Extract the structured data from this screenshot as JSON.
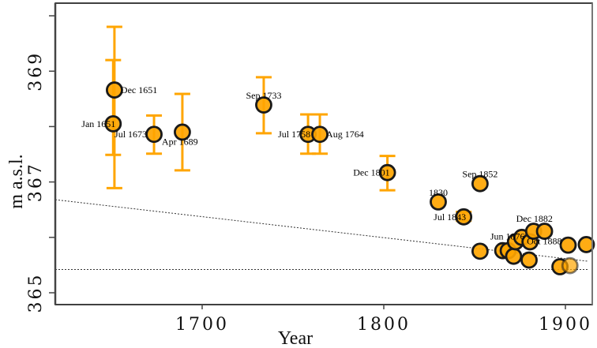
{
  "chart_data": {
    "type": "scatter",
    "title": "",
    "xlabel": "Year",
    "ylabel": "m a.s.l.",
    "xlim": [
      1620,
      1916
    ],
    "ylim": [
      364.8,
      370.2
    ],
    "x_ticks": [
      1700,
      1800,
      1900
    ],
    "x_tick_labels": [
      "1700",
      "1800",
      "1900"
    ],
    "y_ticks": [
      365,
      366,
      367,
      368,
      369,
      370
    ],
    "y_tick_labels": [
      "365",
      "",
      "367",
      "",
      "369",
      ""
    ],
    "grid": false,
    "legend": "none",
    "colors": {
      "marker_fill": "#FFA500",
      "marker_edge": "#1a1a1a",
      "errorbar": "#FFA500",
      "reference_lines": "#333333"
    },
    "reference_lines": [
      {
        "name": "trend-line",
        "style": "dotted",
        "x": [
          1620,
          1916
        ],
        "y": [
          366.68,
          365.57
        ]
      },
      {
        "name": "baseline",
        "style": "dotted",
        "x": [
          1620,
          1916
        ],
        "y": [
          365.42,
          365.42
        ]
      }
    ],
    "points": [
      {
        "label": "Dec 1651",
        "x": 1651.7,
        "y": 368.66,
        "err_low": 366.89,
        "err_high": 369.8,
        "label_pos": "right"
      },
      {
        "label": "Jan 1651",
        "x": 1651.0,
        "y": 368.05,
        "err_low": 367.49,
        "err_high": 369.2,
        "label_pos": "left"
      },
      {
        "label": "Jul 1673",
        "x": 1673.5,
        "y": 367.86,
        "err_low": 367.51,
        "err_high": 368.2,
        "label_pos": "left-below"
      },
      {
        "label": "Apr 1689",
        "x": 1689.1,
        "y": 367.9,
        "err_low": 367.21,
        "err_high": 368.59,
        "label_pos": "right-below"
      },
      {
        "label": "Sep 1733",
        "x": 1733.9,
        "y": 368.39,
        "err_low": 367.88,
        "err_high": 368.89,
        "label_pos": "above"
      },
      {
        "label": "Jul 1758",
        "x": 1758.3,
        "y": 367.86,
        "err_low": 367.51,
        "err_high": 368.22,
        "label_pos": "left"
      },
      {
        "label": "Aug 1764",
        "x": 1764.8,
        "y": 367.86,
        "err_low": 367.51,
        "err_high": 368.22,
        "label_pos": "right"
      },
      {
        "label": "Dec 1801",
        "x": 1802.0,
        "y": 367.17,
        "err_low": 366.85,
        "err_high": 367.47,
        "label_pos": "left"
      },
      {
        "label": "1830",
        "x": 1830.0,
        "y": 366.64,
        "label_pos": "above"
      },
      {
        "label": "Sep 1852",
        "x": 1853.0,
        "y": 366.97,
        "label_pos": "above"
      },
      {
        "label": "Jul 1843",
        "x": 1844.0,
        "y": 366.37,
        "err_low": 366.3,
        "err_high": 366.46,
        "label_pos": "left"
      },
      {
        "label": "",
        "x": 1853.0,
        "y": 365.75
      },
      {
        "label": "Jun 1876",
        "x": 1865.5,
        "y": 365.76,
        "label_pos": "above"
      },
      {
        "label": "",
        "x": 1868.5,
        "y": 365.76
      },
      {
        "label": "",
        "x": 1871.5,
        "y": 365.66
      },
      {
        "label": "",
        "x": 1872.5,
        "y": 365.92
      },
      {
        "label": "",
        "x": 1876.0,
        "y": 366.0
      },
      {
        "label": "Oct 1888",
        "x": 1880.5,
        "y": 365.92,
        "label_pos": "right"
      },
      {
        "label": "",
        "x": 1880.0,
        "y": 365.59
      },
      {
        "label": "Dec 1882",
        "x": 1882.5,
        "y": 366.11,
        "label_pos": "above"
      },
      {
        "label": "",
        "x": 1888.5,
        "y": 366.11
      },
      {
        "label": "",
        "x": 1897.0,
        "y": 365.47
      },
      {
        "label": "",
        "x": 1901.5,
        "y": 365.86
      },
      {
        "label": "",
        "x": 1902.5,
        "y": 365.49,
        "faded": true
      },
      {
        "label": "",
        "x": 1911.5,
        "y": 365.87
      }
    ]
  }
}
